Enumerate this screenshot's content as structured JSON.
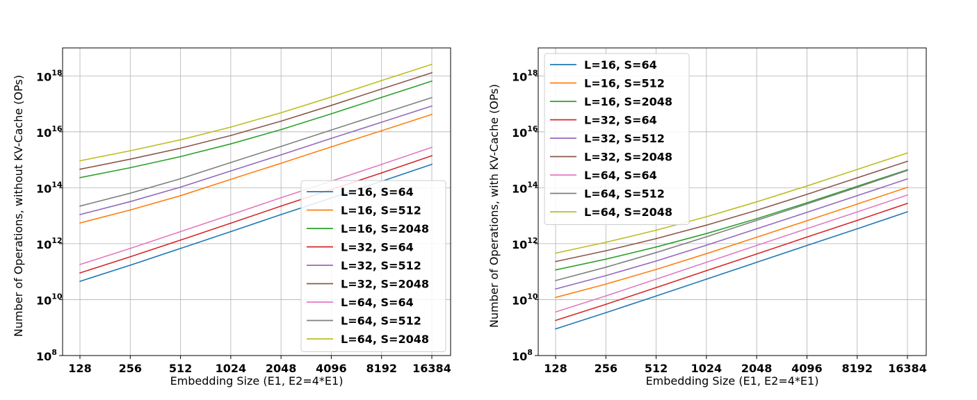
{
  "chart_data": [
    {
      "type": "line",
      "xlabel": "Embedding Size (E1, E2=4*E1)",
      "ylabel": "Number of Operations, without KV-Cache (OPs)",
      "x_scale": "log2",
      "y_scale": "log10",
      "x": [
        128,
        256,
        512,
        1024,
        2048,
        4096,
        8192,
        16384
      ],
      "x_tick_labels": [
        "128",
        "256",
        "512",
        "1024",
        "2048",
        "4096",
        "8192",
        "16384"
      ],
      "ylim": [
        100000000.0,
        1e+19
      ],
      "y_ticks": [
        {
          "value": 100000000.0,
          "base": "10",
          "exp": "8"
        },
        {
          "value": 10000000000.0,
          "base": "10",
          "exp": "10"
        },
        {
          "value": 1000000000000.0,
          "base": "10",
          "exp": "12"
        },
        {
          "value": 100000000000000.0,
          "base": "10",
          "exp": "14"
        },
        {
          "value": 1e+16,
          "base": "10",
          "exp": "16"
        },
        {
          "value": 1e+18,
          "base": "10",
          "exp": "18"
        }
      ],
      "grid": true,
      "legend_position": "lower-right",
      "series": [
        {
          "name": "L=16, S=64",
          "color": "#1f77b4",
          "values": [
            45000000000.0,
            170000000000.0,
            680000000000.0,
            2700000000000.0,
            11000000000000.0,
            43000000000000.0,
            170000000000000.0,
            690000000000000.0
          ]
        },
        {
          "name": "L=16, S=512",
          "color": "#ff7f0e",
          "values": [
            5500000000000.0,
            16000000000000.0,
            52000000000000.0,
            200000000000000.0,
            750000000000000.0,
            2900000000000000.0,
            1.1e+16,
            4.2e+16
          ]
        },
        {
          "name": "L=16, S=2048",
          "color": "#2ca02c",
          "values": [
            230000000000000.0,
            520000000000000.0,
            1300000000000000.0,
            3700000000000000.0,
            1.2e+16,
            4.4e+16,
            1.7e+17,
            6.5e+17
          ]
        },
        {
          "name": "L=32, S=64",
          "color": "#d62728",
          "values": [
            90000000000.0,
            340000000000.0,
            1350000000000.0,
            5400000000000.0,
            22000000000000.0,
            86000000000000.0,
            340000000000000.0,
            1400000000000000.0
          ]
        },
        {
          "name": "L=32, S=512",
          "color": "#9467bd",
          "values": [
            11000000000000.0,
            32000000000000.0,
            105000000000000.0,
            400000000000000.0,
            1500000000000000.0,
            5800000000000000.0,
            2.2e+16,
            8.4e+16
          ]
        },
        {
          "name": "L=32, S=2048",
          "color": "#8c564b",
          "values": [
            460000000000000.0,
            1050000000000000.0,
            2600000000000000.0,
            7400000000000000.0,
            2.4e+16,
            8.8e+16,
            3.4e+17,
            1.3e+18
          ]
        },
        {
          "name": "L=64, S=64",
          "color": "#e377c2",
          "values": [
            180000000000.0,
            680000000000.0,
            2700000000000.0,
            10800000000000.0,
            44000000000000.0,
            172000000000000.0,
            680000000000000.0,
            2800000000000000.0
          ]
        },
        {
          "name": "L=64, S=512",
          "color": "#7f7f7f",
          "values": [
            22000000000000.0,
            64000000000000.0,
            210000000000000.0,
            800000000000000.0,
            3000000000000000.0,
            1.16e+16,
            4.4e+16,
            1.68e+17
          ]
        },
        {
          "name": "L=64, S=2048",
          "color": "#bcbd22",
          "values": [
            920000000000000.0,
            2100000000000000.0,
            5200000000000000.0,
            1.48e+16,
            4.8e+16,
            1.76e+17,
            6.8e+17,
            2.6e+18
          ]
        }
      ]
    },
    {
      "type": "line",
      "xlabel": "Embedding Size (E1, E2=4*E1)",
      "ylabel": "Number of Operations, with KV-Cache (OPs)",
      "x_scale": "log2",
      "y_scale": "log10",
      "x": [
        128,
        256,
        512,
        1024,
        2048,
        4096,
        8192,
        16384
      ],
      "x_tick_labels": [
        "128",
        "256",
        "512",
        "1024",
        "2048",
        "4096",
        "8192",
        "16384"
      ],
      "ylim": [
        100000000.0,
        1e+19
      ],
      "y_ticks": [
        {
          "value": 100000000.0,
          "base": "10",
          "exp": "8"
        },
        {
          "value": 10000000000.0,
          "base": "10",
          "exp": "10"
        },
        {
          "value": 1000000000000.0,
          "base": "10",
          "exp": "12"
        },
        {
          "value": 100000000000000.0,
          "base": "10",
          "exp": "14"
        },
        {
          "value": 1e+16,
          "base": "10",
          "exp": "16"
        },
        {
          "value": 1e+18,
          "base": "10",
          "exp": "18"
        }
      ],
      "grid": true,
      "legend_position": "upper-left",
      "series": [
        {
          "name": "L=16, S=64",
          "color": "#1f77b4",
          "values": [
            900000000.0,
            3400000000.0,
            13500000000.0,
            54000000000.0,
            215000000000.0,
            860000000000.0,
            3400000000000.0,
            13800000000000.0
          ]
        },
        {
          "name": "L=16, S=512",
          "color": "#ff7f0e",
          "values": [
            12000000000.0,
            36000000000.0,
            120000000000.0,
            440000000000.0,
            1700000000000.0,
            6600000000000.0,
            26000000000000.0,
            104000000000000.0
          ]
        },
        {
          "name": "L=16, S=2048",
          "color": "#2ca02c",
          "values": [
            115000000000.0,
            280000000000.0,
            760000000000.0,
            2300000000000.0,
            7800000000000.0,
            29000000000000.0,
            113000000000000.0,
            440000000000000.0
          ]
        },
        {
          "name": "L=32, S=64",
          "color": "#d62728",
          "values": [
            1800000000.0,
            6800000000.0,
            27000000000.0,
            108000000000.0,
            430000000000.0,
            1720000000000.0,
            6800000000000.0,
            27600000000000.0
          ]
        },
        {
          "name": "L=32, S=512",
          "color": "#9467bd",
          "values": [
            24000000000.0,
            72000000000.0,
            240000000000.0,
            880000000000.0,
            3400000000000.0,
            13200000000000.0,
            52000000000000.0,
            208000000000000.0
          ]
        },
        {
          "name": "L=32, S=2048",
          "color": "#8c564b",
          "values": [
            230000000000.0,
            560000000000.0,
            1520000000000.0,
            4600000000000.0,
            15600000000000.0,
            58000000000000.0,
            226000000000000.0,
            880000000000000.0
          ]
        },
        {
          "name": "L=64, S=64",
          "color": "#e377c2",
          "values": [
            3600000000.0,
            13600000000.0,
            54000000000.0,
            216000000000.0,
            860000000000.0,
            3440000000000.0,
            13600000000000.0,
            55000000000000.0
          ]
        },
        {
          "name": "L=64, S=512",
          "color": "#7f7f7f",
          "values": [
            48000000000.0,
            144000000000.0,
            480000000000.0,
            1760000000000.0,
            6800000000000.0,
            26400000000000.0,
            104000000000000.0,
            416000000000000.0
          ]
        },
        {
          "name": "L=64, S=2048",
          "color": "#bcbd22",
          "values": [
            460000000000.0,
            1120000000000.0,
            3040000000000.0,
            9200000000000.0,
            31200000000000.0,
            116000000000000.0,
            452000000000000.0,
            1760000000000000.0
          ]
        }
      ]
    }
  ]
}
